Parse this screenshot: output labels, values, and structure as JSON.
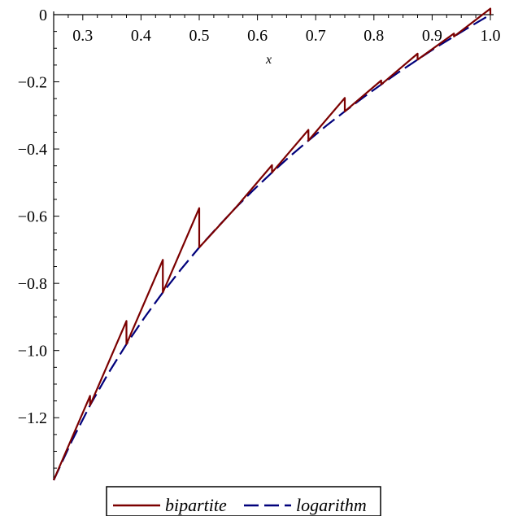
{
  "chart_data": {
    "type": "line",
    "title": "",
    "xlabel": "x",
    "ylabel": "",
    "xlim": [
      0.25,
      1.0
    ],
    "ylim": [
      -1.386,
      0.0
    ],
    "x_ticks": [
      0.3,
      0.4,
      0.5,
      0.6,
      0.7,
      0.8,
      0.9,
      1.0
    ],
    "x_tick_labels": [
      "0.3",
      "0.4",
      "0.5",
      "0.6",
      "0.7",
      "0.8",
      "0.9",
      "1.0"
    ],
    "y_ticks": [
      0,
      -0.2,
      -0.4,
      -0.6,
      -0.8,
      -1.0,
      -1.2
    ],
    "y_tick_labels": [
      "0",
      "−0.2",
      "−0.4",
      "−0.6",
      "−0.8",
      "−1.0",
      "−1.2"
    ],
    "grid": false,
    "legend_position": "bottom",
    "series": [
      {
        "name": "bipartite",
        "style": "solid",
        "color": "#7b0000",
        "x": [
          0.25,
          0.3125,
          0.3125,
          0.375,
          0.375,
          0.4375,
          0.4375,
          0.5,
          0.5,
          0.5625,
          0.5625,
          0.625,
          0.625,
          0.6875,
          0.6875,
          0.75,
          0.75,
          0.8125,
          0.8125,
          0.875,
          0.875,
          0.9375,
          0.9375,
          1.0,
          1.0
        ],
        "y": [
          -1.386,
          -1.135,
          -1.163,
          -0.912,
          -0.981,
          -0.73,
          -0.827,
          -0.576,
          -0.693,
          -0.575,
          -0.575,
          -0.448,
          -0.47,
          -0.343,
          -0.375,
          -0.248,
          -0.288,
          -0.196,
          -0.208,
          -0.116,
          -0.134,
          -0.056,
          -0.065,
          0.018,
          0.0
        ]
      },
      {
        "name": "logarithm",
        "style": "dashed",
        "color": "#00007b",
        "x": [
          0.25,
          0.28125,
          0.3125,
          0.34375,
          0.375,
          0.40625,
          0.4375,
          0.46875,
          0.5,
          0.53125,
          0.5625,
          0.59375,
          0.625,
          0.65625,
          0.6875,
          0.71875,
          0.75,
          0.78125,
          0.8125,
          0.84375,
          0.875,
          0.90625,
          0.9375,
          0.96875,
          1.0
        ],
        "y": [
          -1.386,
          -1.269,
          -1.163,
          -1.068,
          -0.981,
          -0.901,
          -0.827,
          -0.758,
          -0.693,
          -0.633,
          -0.575,
          -0.521,
          -0.47,
          -0.421,
          -0.375,
          -0.33,
          -0.288,
          -0.247,
          -0.208,
          -0.17,
          -0.134,
          -0.098,
          -0.065,
          -0.032,
          0.0
        ]
      }
    ]
  }
}
